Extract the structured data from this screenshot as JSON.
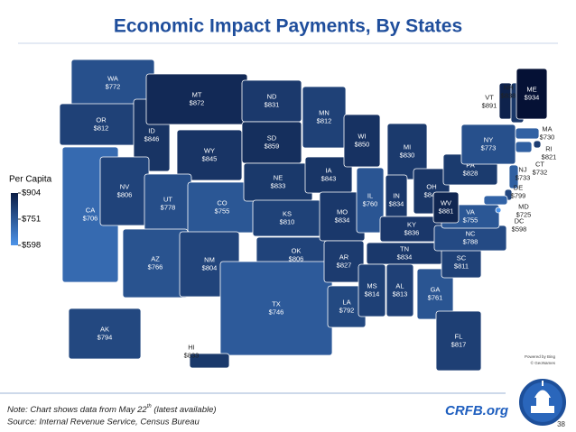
{
  "chart_data": {
    "type": "choropleth",
    "title": "Economic Impact Payments, By States",
    "legend_title": "Per Capita",
    "categories": [
      "WA",
      "OR",
      "CA",
      "ID",
      "NV",
      "MT",
      "WY",
      "UT",
      "AZ",
      "CO",
      "NM",
      "ND",
      "SD",
      "NE",
      "KS",
      "OK",
      "TX",
      "MN",
      "IA",
      "MO",
      "AR",
      "LA",
      "WI",
      "IL",
      "MI",
      "IN",
      "OH",
      "KY",
      "TN",
      "MS",
      "AL",
      "GA",
      "FL",
      "SC",
      "NC",
      "VA",
      "WV",
      "PA",
      "NY",
      "VT",
      "NH",
      "ME",
      "MA",
      "RI",
      "CT",
      "NJ",
      "DE",
      "MD",
      "DC",
      "AK",
      "HI"
    ],
    "values": [
      772,
      812,
      706,
      846,
      806,
      872,
      845,
      778,
      766,
      755,
      804,
      831,
      859,
      833,
      810,
      806,
      746,
      812,
      843,
      834,
      827,
      792,
      850,
      760,
      830,
      834,
      841,
      836,
      834,
      814,
      813,
      761,
      817,
      811,
      788,
      755,
      881,
      828,
      773,
      891,
      838,
      934,
      730,
      821,
      732,
      733,
      799,
      725,
      598,
      794,
      833
    ],
    "value_labels": [
      "$772",
      "$812",
      "$706",
      "$846",
      "$806",
      "$872",
      "$845",
      "$778",
      "$766",
      "$755",
      "$804",
      "$831",
      "$859",
      "$833",
      "$810",
      "$806",
      "$746",
      "$812",
      "$843",
      "$834",
      "$827",
      "$792",
      "$850",
      "$760",
      "$830",
      "$834",
      "$841",
      "$836",
      "$834",
      "$814",
      "$813",
      "$761",
      "$817",
      "$811",
      "$788",
      "$755",
      "$881",
      "$828",
      "$773",
      "$891",
      "$838",
      "$934",
      "$730",
      "$821",
      "$732",
      "$733",
      "$799",
      "$725",
      "$598",
      "$794",
      "$833"
    ],
    "colorlim": [
      598,
      904
    ],
    "colors": [
      "#4d94ea",
      "#0b1d45"
    ],
    "yticks": [
      {
        "value": 904,
        "label": "$904"
      },
      {
        "value": 751,
        "label": "$751"
      },
      {
        "value": 598,
        "label": "$598"
      }
    ],
    "note": "Note: Chart shows data from May 22",
    "note_sup": "th",
    "note_end": " (latest available)",
    "source": "Source: Internal Revenue Service, Census Bureau",
    "brand": "CRFB.org",
    "page_number": "38",
    "attribution": [
      "Powered by Bing",
      "© GeoNames"
    ]
  }
}
